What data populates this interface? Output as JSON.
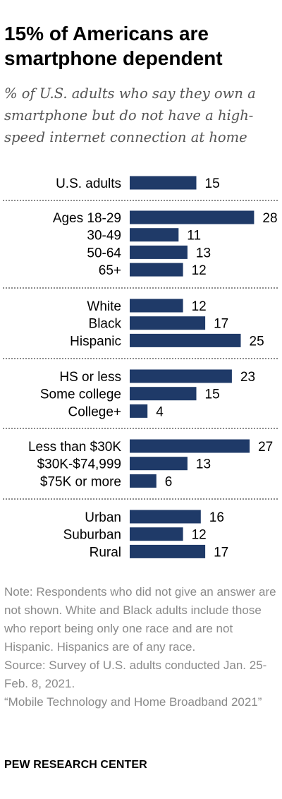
{
  "title": "15% of Americans are smartphone dependent",
  "subtitle": "% of U.S. adults who say they own a smartphone but do not have a high-speed internet connection at home",
  "chart_data": {
    "type": "bar",
    "orientation": "horizontal",
    "bar_color": "#1f3a68",
    "divider_color": "#8c8c8c",
    "groups": [
      {
        "categories": [
          "U.S. adults"
        ],
        "values": [
          15
        ]
      },
      {
        "categories": [
          "Ages 18-29",
          "30-49",
          "50-64",
          "65+"
        ],
        "values": [
          28,
          11,
          13,
          12
        ]
      },
      {
        "categories": [
          "White",
          "Black",
          "Hispanic"
        ],
        "values": [
          12,
          17,
          25
        ]
      },
      {
        "categories": [
          "HS or less",
          "Some college",
          "College+"
        ],
        "values": [
          23,
          15,
          4
        ]
      },
      {
        "categories": [
          "Less than $30K",
          "$30K-$74,999",
          "$75K or more"
        ],
        "values": [
          27,
          13,
          6
        ]
      },
      {
        "categories": [
          "Urban",
          "Suburban",
          "Rural"
        ],
        "values": [
          16,
          12,
          17
        ]
      }
    ]
  },
  "notes": [
    "Note: Respondents who did not give an answer are not shown. White and Black adults include those who report being only one race and are not Hispanic. Hispanics are of any race.",
    "Source: Survey of U.S. adults conducted Jan. 25-Feb. 8, 2021.",
    "“Mobile Technology and Home Broadband 2021”"
  ],
  "brand": "PEW RESEARCH CENTER"
}
